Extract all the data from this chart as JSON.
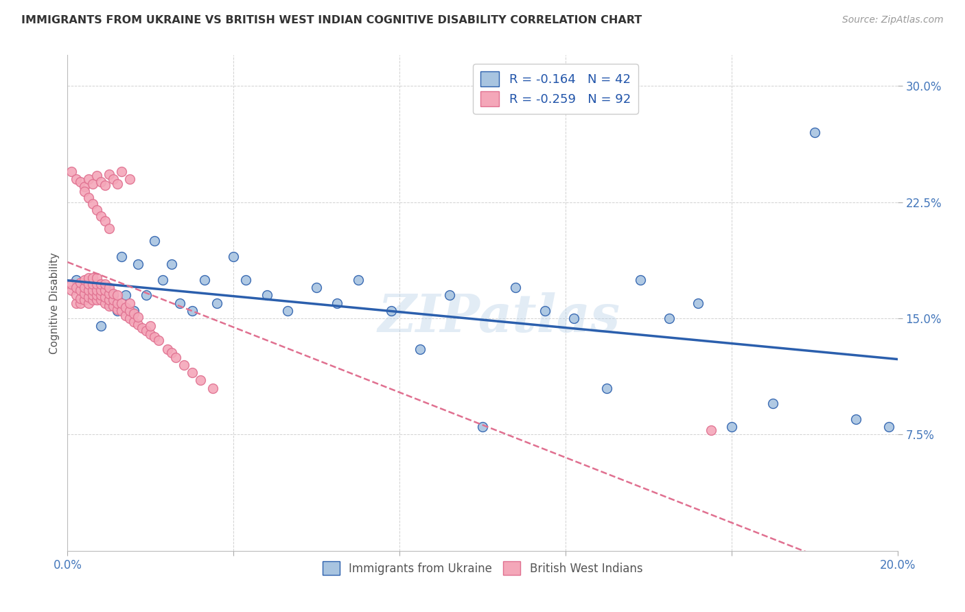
{
  "title": "IMMIGRANTS FROM UKRAINE VS BRITISH WEST INDIAN COGNITIVE DISABILITY CORRELATION CHART",
  "source": "Source: ZipAtlas.com",
  "ylabel": "Cognitive Disability",
  "xlim": [
    0.0,
    0.2
  ],
  "ylim": [
    0.0,
    0.32
  ],
  "xticks": [
    0.0,
    0.04,
    0.08,
    0.12,
    0.16,
    0.2
  ],
  "xtick_labels": [
    "0.0%",
    "",
    "",
    "",
    "",
    "20.0%"
  ],
  "yticks": [
    0.075,
    0.15,
    0.225,
    0.3
  ],
  "ytick_labels": [
    "7.5%",
    "15.0%",
    "22.5%",
    "30.0%"
  ],
  "blue_color": "#a8c4e0",
  "pink_color": "#f4a7b9",
  "blue_line_color": "#2b5fad",
  "pink_line_color": "#e07090",
  "legend_R_blue": "R = -0.164",
  "legend_N_blue": "N = 42",
  "legend_R_pink": "R = -0.259",
  "legend_N_pink": "N = 92",
  "watermark": "ZIPatlas",
  "blue_scatter_x": [
    0.002,
    0.005,
    0.008,
    0.009,
    0.01,
    0.011,
    0.012,
    0.013,
    0.014,
    0.016,
    0.017,
    0.019,
    0.021,
    0.023,
    0.025,
    0.027,
    0.03,
    0.033,
    0.036,
    0.04,
    0.043,
    0.048,
    0.053,
    0.06,
    0.065,
    0.07,
    0.078,
    0.085,
    0.092,
    0.1,
    0.108,
    0.115,
    0.122,
    0.13,
    0.138,
    0.145,
    0.152,
    0.16,
    0.17,
    0.18,
    0.19,
    0.198
  ],
  "blue_scatter_y": [
    0.175,
    0.165,
    0.145,
    0.17,
    0.16,
    0.165,
    0.155,
    0.19,
    0.165,
    0.155,
    0.185,
    0.165,
    0.2,
    0.175,
    0.185,
    0.16,
    0.155,
    0.175,
    0.16,
    0.19,
    0.175,
    0.165,
    0.155,
    0.17,
    0.16,
    0.175,
    0.155,
    0.13,
    0.165,
    0.08,
    0.17,
    0.155,
    0.15,
    0.105,
    0.175,
    0.15,
    0.16,
    0.08,
    0.095,
    0.27,
    0.085,
    0.08
  ],
  "pink_scatter_x": [
    0.001,
    0.001,
    0.002,
    0.002,
    0.002,
    0.003,
    0.003,
    0.003,
    0.003,
    0.004,
    0.004,
    0.004,
    0.004,
    0.005,
    0.005,
    0.005,
    0.005,
    0.005,
    0.006,
    0.006,
    0.006,
    0.006,
    0.006,
    0.007,
    0.007,
    0.007,
    0.007,
    0.007,
    0.008,
    0.008,
    0.008,
    0.008,
    0.009,
    0.009,
    0.009,
    0.009,
    0.01,
    0.01,
    0.01,
    0.01,
    0.011,
    0.011,
    0.011,
    0.012,
    0.012,
    0.012,
    0.013,
    0.013,
    0.014,
    0.014,
    0.015,
    0.015,
    0.015,
    0.016,
    0.016,
    0.017,
    0.017,
    0.018,
    0.019,
    0.02,
    0.02,
    0.021,
    0.022,
    0.024,
    0.025,
    0.026,
    0.028,
    0.03,
    0.032,
    0.035,
    0.001,
    0.002,
    0.003,
    0.004,
    0.005,
    0.006,
    0.007,
    0.008,
    0.009,
    0.01,
    0.011,
    0.012,
    0.013,
    0.015,
    0.004,
    0.005,
    0.006,
    0.007,
    0.008,
    0.009,
    0.01,
    0.155
  ],
  "pink_scatter_y": [
    0.168,
    0.172,
    0.16,
    0.165,
    0.17,
    0.16,
    0.163,
    0.168,
    0.173,
    0.162,
    0.166,
    0.17,
    0.175,
    0.16,
    0.164,
    0.168,
    0.172,
    0.176,
    0.162,
    0.165,
    0.168,
    0.172,
    0.176,
    0.162,
    0.165,
    0.168,
    0.172,
    0.176,
    0.162,
    0.165,
    0.168,
    0.172,
    0.16,
    0.164,
    0.168,
    0.172,
    0.158,
    0.162,
    0.166,
    0.17,
    0.158,
    0.162,
    0.166,
    0.156,
    0.16,
    0.165,
    0.155,
    0.16,
    0.152,
    0.157,
    0.15,
    0.155,
    0.16,
    0.148,
    0.153,
    0.146,
    0.151,
    0.144,
    0.142,
    0.14,
    0.145,
    0.138,
    0.136,
    0.13,
    0.128,
    0.125,
    0.12,
    0.115,
    0.11,
    0.105,
    0.245,
    0.24,
    0.238,
    0.235,
    0.24,
    0.237,
    0.242,
    0.238,
    0.236,
    0.243,
    0.24,
    0.237,
    0.245,
    0.24,
    0.232,
    0.228,
    0.224,
    0.22,
    0.216,
    0.213,
    0.208,
    0.078
  ]
}
